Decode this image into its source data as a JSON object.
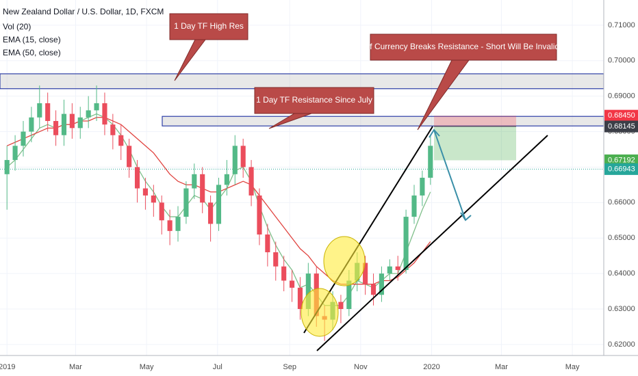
{
  "chart_data": {
    "type": "candlestick",
    "title": "New Zealand Dollar / U.S. Dollar, 1D, FXCM",
    "indicators": [
      "Vol (20)"
    ],
    "x": [
      0,
      7,
      14,
      21,
      28,
      35,
      42,
      49,
      56,
      63,
      70,
      77,
      84,
      91,
      98,
      105,
      112,
      119,
      126,
      133,
      140,
      147,
      154,
      161,
      168,
      175,
      182,
      189,
      196,
      203,
      210,
      217,
      224,
      231,
      238,
      245,
      252,
      259,
      266,
      273,
      280,
      287,
      294,
      301,
      308,
      315,
      322,
      329,
      336,
      343,
      350,
      357,
      364
    ],
    "open": [
      0.668,
      0.672,
      0.676,
      0.68,
      0.684,
      0.688,
      0.683,
      0.679,
      0.685,
      0.681,
      0.684,
      0.686,
      0.688,
      0.682,
      0.679,
      0.676,
      0.67,
      0.664,
      0.662,
      0.66,
      0.655,
      0.652,
      0.656,
      0.664,
      0.668,
      0.66,
      0.654,
      0.665,
      0.668,
      0.676,
      0.67,
      0.662,
      0.651,
      0.646,
      0.642,
      0.638,
      0.636,
      0.63,
      0.64,
      0.628,
      0.627,
      0.632,
      0.63,
      0.638,
      0.643,
      0.637,
      0.634,
      0.64,
      0.642,
      0.641,
      0.656,
      0.662,
      0.667
    ],
    "high": [
      0.676,
      0.679,
      0.683,
      0.687,
      0.693,
      0.691,
      0.686,
      0.689,
      0.688,
      0.687,
      0.69,
      0.693,
      0.691,
      0.685,
      0.682,
      0.678,
      0.672,
      0.667,
      0.665,
      0.662,
      0.658,
      0.659,
      0.666,
      0.671,
      0.67,
      0.662,
      0.667,
      0.672,
      0.679,
      0.678,
      0.672,
      0.664,
      0.654,
      0.649,
      0.645,
      0.641,
      0.639,
      0.643,
      0.642,
      0.631,
      0.635,
      0.634,
      0.641,
      0.646,
      0.645,
      0.64,
      0.642,
      0.644,
      0.645,
      0.658,
      0.665,
      0.669,
      0.679
    ],
    "low": [
      0.658,
      0.669,
      0.673,
      0.677,
      0.681,
      0.68,
      0.676,
      0.676,
      0.678,
      0.678,
      0.681,
      0.683,
      0.679,
      0.675,
      0.672,
      0.667,
      0.66,
      0.658,
      0.656,
      0.651,
      0.648,
      0.649,
      0.654,
      0.661,
      0.657,
      0.649,
      0.652,
      0.662,
      0.665,
      0.667,
      0.659,
      0.648,
      0.642,
      0.638,
      0.635,
      0.632,
      0.627,
      0.628,
      0.625,
      0.621,
      0.624,
      0.626,
      0.628,
      0.635,
      0.634,
      0.631,
      0.632,
      0.638,
      0.638,
      0.64,
      0.654,
      0.659,
      0.665
    ],
    "close": [
      0.672,
      0.676,
      0.68,
      0.684,
      0.688,
      0.683,
      0.679,
      0.685,
      0.681,
      0.684,
      0.686,
      0.688,
      0.682,
      0.679,
      0.676,
      0.67,
      0.664,
      0.662,
      0.66,
      0.655,
      0.652,
      0.656,
      0.664,
      0.668,
      0.66,
      0.654,
      0.665,
      0.668,
      0.676,
      0.67,
      0.662,
      0.651,
      0.646,
      0.642,
      0.638,
      0.636,
      0.63,
      0.64,
      0.628,
      0.627,
      0.632,
      0.63,
      0.638,
      0.643,
      0.637,
      0.634,
      0.64,
      0.642,
      0.641,
      0.656,
      0.662,
      0.667,
      0.676
    ],
    "up_color": "#53b987",
    "down_color": "#eb4d5c",
    "series": [
      {
        "name": "EMA (15, close)",
        "color": "#7fbf8a",
        "values": [
          0.67,
          0.672,
          0.675,
          0.678,
          0.681,
          0.682,
          0.681,
          0.682,
          0.682,
          0.683,
          0.684,
          0.685,
          0.684,
          0.682,
          0.679,
          0.675,
          0.67,
          0.666,
          0.663,
          0.659,
          0.656,
          0.656,
          0.659,
          0.662,
          0.661,
          0.658,
          0.661,
          0.664,
          0.669,
          0.67,
          0.666,
          0.659,
          0.653,
          0.648,
          0.644,
          0.641,
          0.636,
          0.637,
          0.634,
          0.631,
          0.631,
          0.631,
          0.634,
          0.638,
          0.637,
          0.636,
          0.638,
          0.64,
          0.64,
          0.646,
          0.652,
          0.658,
          0.663
        ]
      },
      {
        "name": "EMA (50, close)",
        "color": "#e0433f",
        "values": [
          0.676,
          0.677,
          0.678,
          0.679,
          0.68,
          0.681,
          0.681,
          0.682,
          0.682,
          0.683,
          0.683,
          0.684,
          0.684,
          0.683,
          0.682,
          0.68,
          0.678,
          0.676,
          0.674,
          0.671,
          0.668,
          0.666,
          0.665,
          0.665,
          0.664,
          0.663,
          0.663,
          0.664,
          0.665,
          0.666,
          0.665,
          0.662,
          0.659,
          0.656,
          0.653,
          0.65,
          0.647,
          0.645,
          0.642,
          0.64,
          0.638,
          0.637,
          0.637,
          0.637,
          0.637,
          0.637,
          0.638,
          0.638,
          0.639,
          0.641,
          0.643,
          0.646,
          0.649
        ]
      }
    ],
    "xlim": [
      -6,
      513
    ],
    "ylim": [
      0.6169,
      0.7171
    ],
    "xticks": [
      {
        "value": 0,
        "label": "2019"
      },
      {
        "value": 59,
        "label": "Mar"
      },
      {
        "value": 120,
        "label": "May"
      },
      {
        "value": 181,
        "label": "Jul"
      },
      {
        "value": 243,
        "label": "Sep"
      },
      {
        "value": 304,
        "label": "Nov"
      },
      {
        "value": 365,
        "label": "2020"
      },
      {
        "value": 425,
        "label": "Mar"
      },
      {
        "value": 486,
        "label": "May"
      }
    ],
    "yticks": [
      {
        "value": 0.62,
        "label": "0.62000"
      },
      {
        "value": 0.63,
        "label": "0.63000"
      },
      {
        "value": 0.64,
        "label": "0.64000"
      },
      {
        "value": 0.65,
        "label": "0.65000"
      },
      {
        "value": 0.66,
        "label": "0.66000"
      },
      {
        "value": 0.67,
        "label": "0.67000"
      },
      {
        "value": 0.68,
        "label": "0.68000"
      },
      {
        "value": 0.69,
        "label": "0.69000"
      },
      {
        "value": 0.7,
        "label": "0.70000"
      },
      {
        "value": 0.71,
        "label": "0.71000"
      }
    ],
    "grid": true,
    "zones": [
      {
        "top": 0.6963,
        "bottom": 0.6921
      },
      {
        "top": 0.6843,
        "bottom": 0.6816
      }
    ],
    "position": {
      "stop": {
        "value": 0.6845,
        "label": "0.68450"
      },
      "entry": {
        "value": 0.68145,
        "label": "0.68145"
      },
      "target": {
        "value": 0.67192,
        "label": "0.67192"
      }
    },
    "last_price": {
      "value": 0.66943,
      "label": "0.66943"
    },
    "annotations": [
      "1 Day TF High Res",
      "If Currency Breaks Resistance - Short Will Be Invalid",
      "1 Day TF Resistance Since July"
    ]
  }
}
